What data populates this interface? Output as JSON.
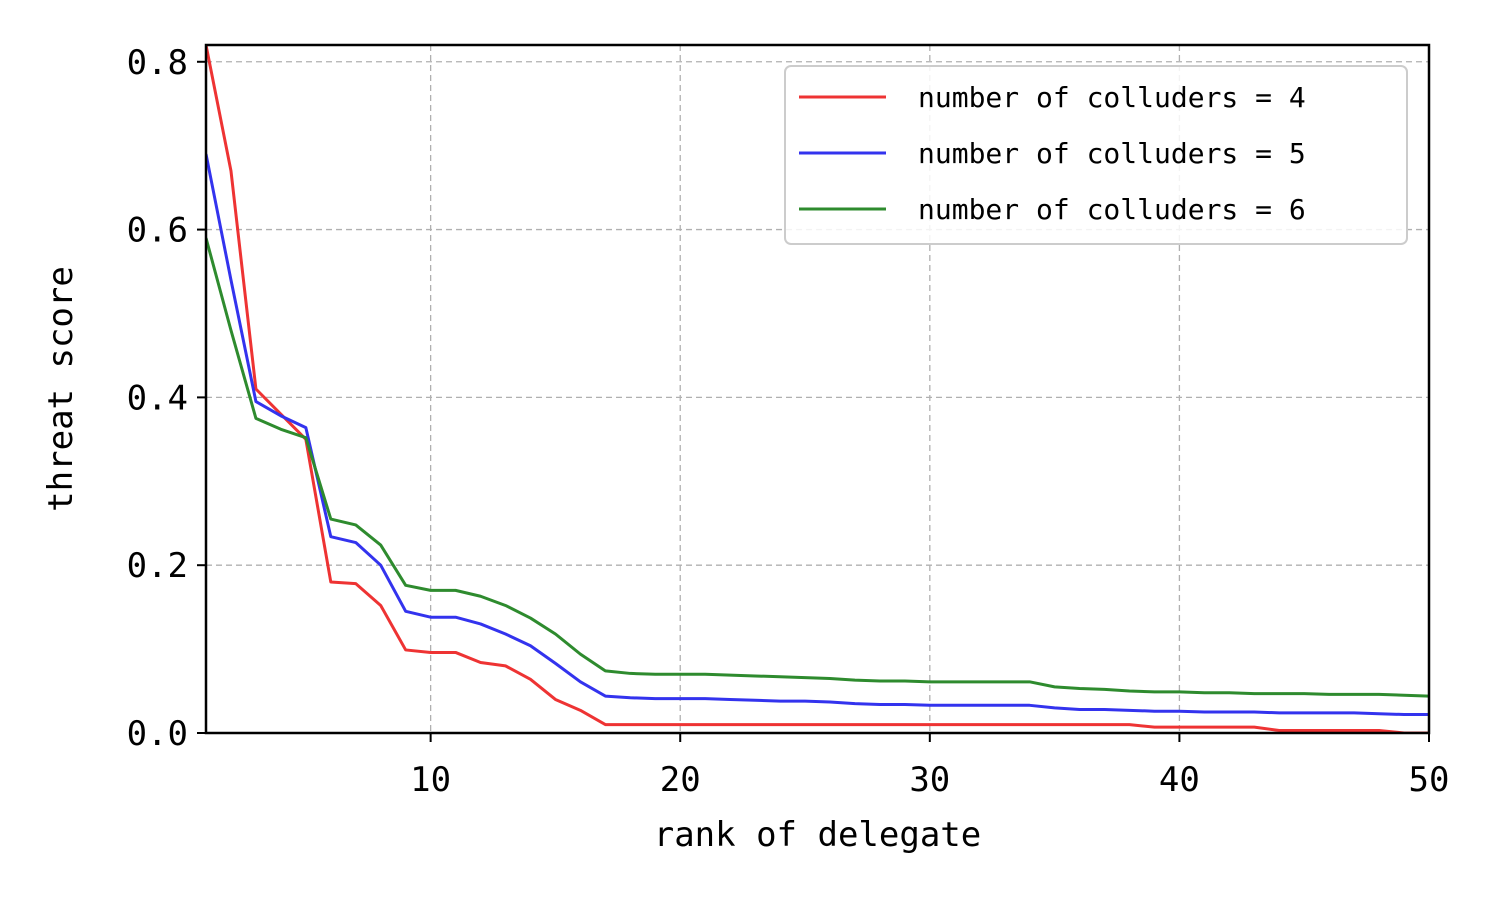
{
  "chart_data": {
    "type": "line",
    "title": "",
    "xlabel": "rank of delegate",
    "ylabel": "threat score",
    "xlim": [
      1,
      50
    ],
    "ylim": [
      0.0,
      0.82
    ],
    "xticks": [
      10,
      20,
      30,
      40,
      50
    ],
    "yticks": [
      0.0,
      0.2,
      0.4,
      0.6,
      0.8
    ],
    "xtick_labels": [
      "10",
      "20",
      "30",
      "40",
      "50"
    ],
    "ytick_labels": [
      "0.0",
      "0.2",
      "0.4",
      "0.6",
      "0.8"
    ],
    "grid": true,
    "legend_position": "top-right",
    "x": [
      1,
      2,
      3,
      4,
      5,
      6,
      7,
      8,
      9,
      10,
      11,
      12,
      13,
      14,
      15,
      16,
      17,
      18,
      19,
      20,
      21,
      22,
      23,
      24,
      25,
      26,
      27,
      28,
      29,
      30,
      31,
      32,
      33,
      34,
      35,
      36,
      37,
      38,
      39,
      40,
      41,
      42,
      43,
      44,
      45,
      46,
      47,
      48,
      49,
      50
    ],
    "series": [
      {
        "name": "number of colluders = 4",
        "color": "#ee3333",
        "values": [
          0.82,
          0.67,
          0.41,
          0.38,
          0.35,
          0.18,
          0.178,
          0.152,
          0.099,
          0.096,
          0.096,
          0.084,
          0.08,
          0.064,
          0.04,
          0.027,
          0.01,
          0.01,
          0.01,
          0.01,
          0.01,
          0.01,
          0.01,
          0.01,
          0.01,
          0.01,
          0.01,
          0.01,
          0.01,
          0.01,
          0.01,
          0.01,
          0.01,
          0.01,
          0.01,
          0.01,
          0.01,
          0.01,
          0.007,
          0.007,
          0.007,
          0.007,
          0.007,
          0.003,
          0.003,
          0.003,
          0.003,
          0.003,
          0.0,
          0.0
        ]
      },
      {
        "name": "number of colluders = 5",
        "color": "#3333ee",
        "values": [
          0.69,
          0.54,
          0.395,
          0.378,
          0.364,
          0.234,
          0.227,
          0.2,
          0.145,
          0.138,
          0.138,
          0.13,
          0.118,
          0.104,
          0.083,
          0.061,
          0.044,
          0.042,
          0.041,
          0.041,
          0.041,
          0.04,
          0.039,
          0.038,
          0.038,
          0.037,
          0.035,
          0.034,
          0.034,
          0.033,
          0.033,
          0.033,
          0.033,
          0.033,
          0.03,
          0.028,
          0.028,
          0.027,
          0.026,
          0.026,
          0.025,
          0.025,
          0.025,
          0.024,
          0.024,
          0.024,
          0.024,
          0.023,
          0.022,
          0.022
        ]
      },
      {
        "name": "number of colluders = 6",
        "color": "#2e8b2e",
        "values": [
          0.59,
          0.48,
          0.375,
          0.362,
          0.352,
          0.255,
          0.248,
          0.224,
          0.176,
          0.17,
          0.17,
          0.163,
          0.152,
          0.137,
          0.118,
          0.094,
          0.074,
          0.071,
          0.07,
          0.07,
          0.07,
          0.069,
          0.068,
          0.067,
          0.066,
          0.065,
          0.063,
          0.062,
          0.062,
          0.061,
          0.061,
          0.061,
          0.061,
          0.061,
          0.055,
          0.053,
          0.052,
          0.05,
          0.049,
          0.049,
          0.048,
          0.048,
          0.047,
          0.047,
          0.047,
          0.046,
          0.046,
          0.046,
          0.045,
          0.044
        ]
      }
    ]
  }
}
